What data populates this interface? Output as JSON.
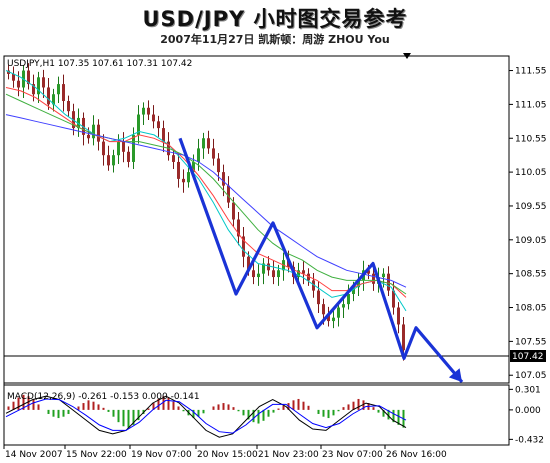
{
  "header": {
    "title": "USD/JPY 小时图交易参考",
    "subtitle": "2007年11月27日 凯斯顿：周游 ZHOU You"
  },
  "chart_data": [
    {
      "type": "line",
      "info_label": "USDJPY,H1  107.35 107.61 107.31 107.42",
      "symbol": "USDJPY",
      "timeframe": "H1",
      "last_bar": {
        "open": 107.35,
        "high": 107.61,
        "low": 107.31,
        "close": 107.42
      },
      "current_price_label": "107.42",
      "ylim": [
        106.95,
        111.75
      ],
      "y_ticks": [
        "111.55",
        "111.05",
        "110.55",
        "110.05",
        "109.55",
        "109.05",
        "108.55",
        "108.05",
        "107.55",
        "107.05"
      ],
      "x_ticks": [
        "14 Nov 2007",
        "15 Nov 22:00",
        "19 Nov 07:00",
        "20 Nov 15:00",
        "21 Nov 23:00",
        "23 Nov 07:00",
        "26 Nov 16:00"
      ],
      "grid": false,
      "candles_close": [
        111.5,
        111.4,
        111.3,
        111.55,
        111.35,
        111.2,
        111.45,
        111.3,
        111.05,
        111.2,
        111.35,
        111.1,
        110.95,
        110.7,
        110.85,
        110.6,
        110.55,
        110.75,
        110.5,
        110.3,
        110.15,
        110.3,
        110.5,
        110.35,
        110.2,
        110.6,
        110.9,
        111.0,
        110.9,
        110.8,
        110.7,
        110.5,
        110.3,
        110.2,
        109.95,
        109.9,
        110.05,
        110.2,
        110.4,
        110.55,
        110.4,
        110.25,
        110.05,
        109.85,
        109.6,
        109.35,
        109.1,
        108.8,
        108.6,
        108.5,
        108.55,
        108.7,
        108.6,
        108.5,
        108.6,
        108.75,
        108.65,
        108.5,
        108.6,
        108.55,
        108.45,
        108.3,
        108.1,
        107.95,
        107.85,
        107.9,
        108.05,
        108.1,
        108.25,
        108.35,
        108.45,
        108.6,
        108.55,
        108.4,
        108.5,
        108.55,
        108.3,
        108.05,
        107.8,
        107.42
      ],
      "series": [
        {
          "values": [
            111.55,
            111.45,
            111.3,
            111.1,
            110.9,
            110.75,
            110.6,
            110.5,
            110.55,
            110.65,
            110.6,
            110.45,
            110.2,
            109.95,
            109.6,
            109.2,
            108.9,
            108.7,
            108.65,
            108.6,
            108.5,
            108.35,
            108.2,
            108.25,
            108.4,
            108.45,
            108.35,
            108.0
          ],
          "color": "#00c8c8"
        },
        {
          "values": [
            111.3,
            111.25,
            111.15,
            111.0,
            110.85,
            110.7,
            110.6,
            110.5,
            110.5,
            110.6,
            110.55,
            110.45,
            110.25,
            110.0,
            109.7,
            109.35,
            109.05,
            108.85,
            108.75,
            108.65,
            108.55,
            108.45,
            108.3,
            108.3,
            108.4,
            108.45,
            108.4,
            108.2
          ],
          "color": "#ff4040"
        },
        {
          "values": [
            111.2,
            111.1,
            111.0,
            110.9,
            110.8,
            110.7,
            110.6,
            110.55,
            110.5,
            110.5,
            110.45,
            110.4,
            110.3,
            110.15,
            109.95,
            109.7,
            109.45,
            109.2,
            109.0,
            108.85,
            108.75,
            108.6,
            108.5,
            108.45,
            108.45,
            108.45,
            108.4,
            108.25
          ],
          "color": "#40b040"
        },
        {
          "values": [
            110.9,
            110.85,
            110.8,
            110.75,
            110.7,
            110.65,
            110.6,
            110.55,
            110.5,
            110.45,
            110.4,
            110.35,
            110.3,
            110.2,
            110.05,
            109.85,
            109.65,
            109.45,
            109.25,
            109.1,
            108.95,
            108.8,
            108.7,
            108.6,
            108.55,
            108.5,
            108.45,
            108.35
          ],
          "color": "#4040ff"
        }
      ],
      "annotation": {
        "type": "zigzag-forecast",
        "color": "#1a33d6",
        "points": [
          [
            110.55,
            0
          ],
          [
            108.25,
            1
          ],
          [
            109.3,
            2
          ],
          [
            107.75,
            3
          ],
          [
            108.7,
            4
          ],
          [
            107.3,
            5
          ],
          [
            107.75,
            6
          ],
          [
            106.95,
            7
          ]
        ]
      }
    },
    {
      "type": "bar",
      "info_label": "MACD(12,26,9) -0.261 -0.153 0.000 -0.141",
      "params": [
        12,
        26,
        9
      ],
      "values_shown": [
        -0.261,
        -0.153,
        0.0,
        -0.141
      ],
      "ylim": [
        -0.5,
        0.35
      ],
      "y_ticks": [
        "0.301",
        "0.000",
        "-0.432"
      ],
      "histogram": [
        0.05,
        0.12,
        0.18,
        0.22,
        0.2,
        0.15,
        0.08,
        0.0,
        -0.06,
        -0.1,
        -0.12,
        -0.1,
        -0.06,
        0.0,
        0.05,
        0.1,
        0.14,
        0.12,
        0.08,
        0.03,
        -0.03,
        -0.1,
        -0.18,
        -0.24,
        -0.26,
        -0.22,
        -0.15,
        -0.06,
        0.02,
        0.1,
        0.16,
        0.2,
        0.18,
        0.12,
        0.05,
        -0.02,
        -0.08,
        -0.12,
        -0.1,
        -0.05,
        0.0,
        0.05,
        0.08,
        0.1,
        0.08,
        0.04,
        -0.02,
        -0.08,
        -0.14,
        -0.18,
        -0.2,
        -0.16,
        -0.1,
        -0.04,
        0.02,
        0.06,
        0.1,
        0.14,
        0.16,
        0.12,
        0.06,
        0.0,
        -0.06,
        -0.1,
        -0.12,
        -0.08,
        -0.02,
        0.04,
        0.08,
        0.12,
        0.16,
        0.14,
        0.1,
        0.04,
        -0.04,
        -0.1,
        -0.14,
        -0.18,
        -0.22,
        -0.26
      ],
      "series": [
        {
          "values": [
            -0.05,
            0.05,
            0.15,
            0.2,
            0.15,
            0.0,
            -0.15,
            -0.3,
            -0.35,
            -0.3,
            -0.1,
            0.1,
            0.2,
            0.1,
            -0.1,
            -0.3,
            -0.4,
            -0.35,
            -0.15,
            0.05,
            0.15,
            0.05,
            -0.15,
            -0.28,
            -0.3,
            -0.15,
            0.0,
            0.1,
            0.05,
            -0.15,
            -0.26
          ],
          "color": "#000000"
        },
        {
          "values": [
            -0.1,
            0.0,
            0.1,
            0.16,
            0.15,
            0.05,
            -0.08,
            -0.22,
            -0.3,
            -0.3,
            -0.18,
            0.0,
            0.14,
            0.12,
            -0.02,
            -0.2,
            -0.32,
            -0.34,
            -0.22,
            -0.05,
            0.08,
            0.08,
            -0.06,
            -0.2,
            -0.26,
            -0.2,
            -0.06,
            0.05,
            0.06,
            -0.05,
            -0.15
          ],
          "color": "#0000ff"
        }
      ]
    }
  ]
}
